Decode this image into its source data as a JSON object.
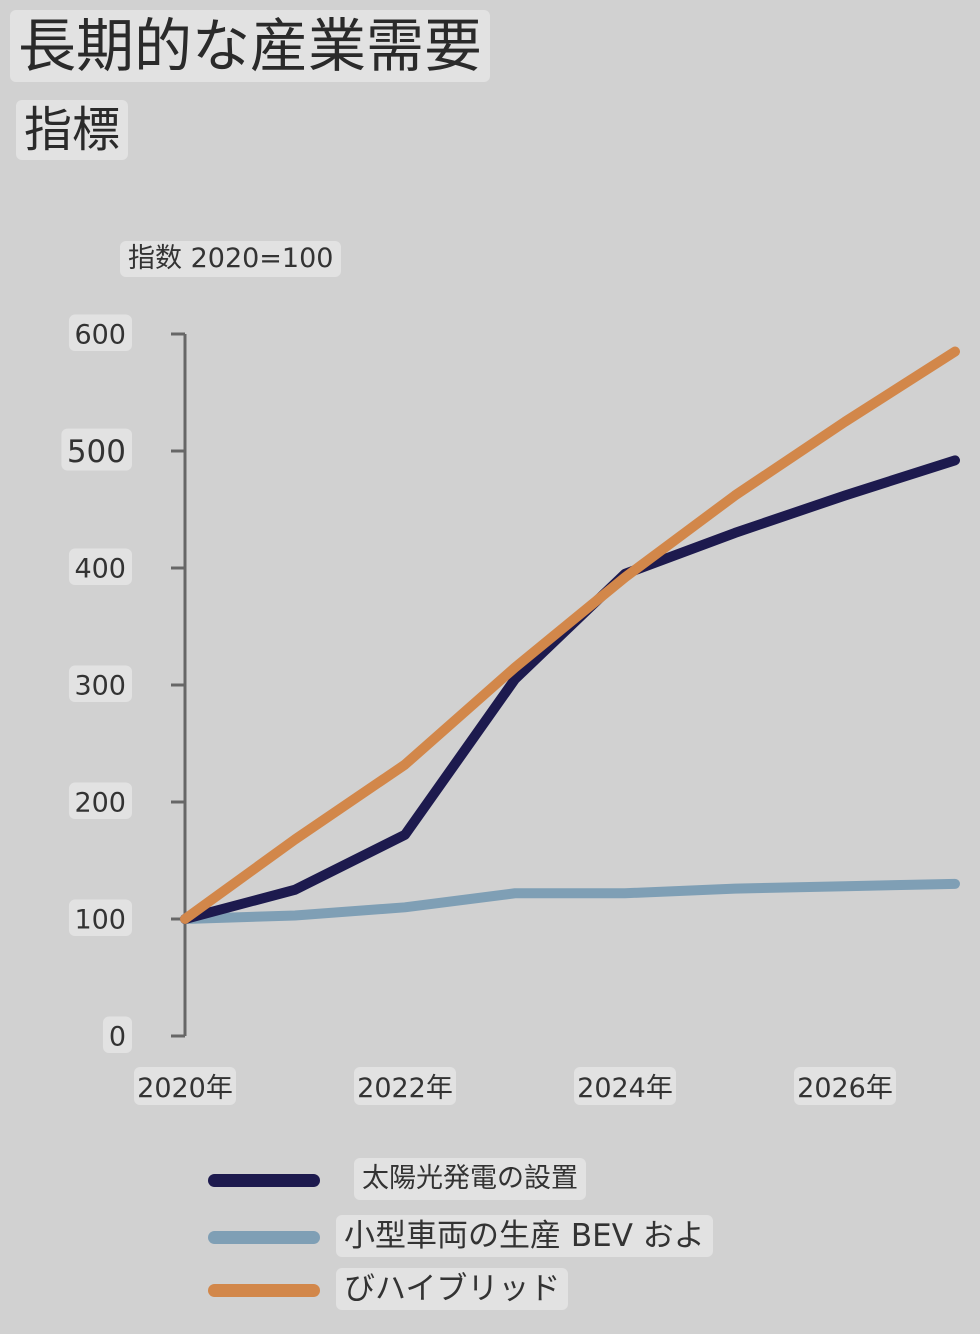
{
  "header": {
    "title": "長期的な産業需要",
    "subtitle": "指標"
  },
  "chart_data": {
    "type": "line",
    "ylabel": "指数 2020=100",
    "ylim": [
      0,
      600
    ],
    "yticks": [
      "0",
      "100",
      "200",
      "300",
      "400",
      "500",
      "600"
    ],
    "xticks": [
      "2020年",
      "2022年",
      "2024年",
      "2026年"
    ],
    "x": [
      2020,
      2021,
      2022,
      2023,
      2024,
      2025,
      2026,
      2027
    ],
    "series": [
      {
        "name": "太陽光発電の設置",
        "color": "#1d1a4e",
        "values": [
          100,
          125,
          172,
          305,
          395,
          430,
          462,
          492
        ]
      },
      {
        "name": "小型車両の生産 BEV およ",
        "color": "#7f9fb5",
        "values": [
          100,
          103,
          110,
          122,
          122,
          126,
          128,
          130
        ]
      },
      {
        "name": "びハイブリッド",
        "color": "#d2874a",
        "values": [
          100,
          168,
          232,
          315,
          392,
          462,
          525,
          585
        ]
      }
    ]
  }
}
